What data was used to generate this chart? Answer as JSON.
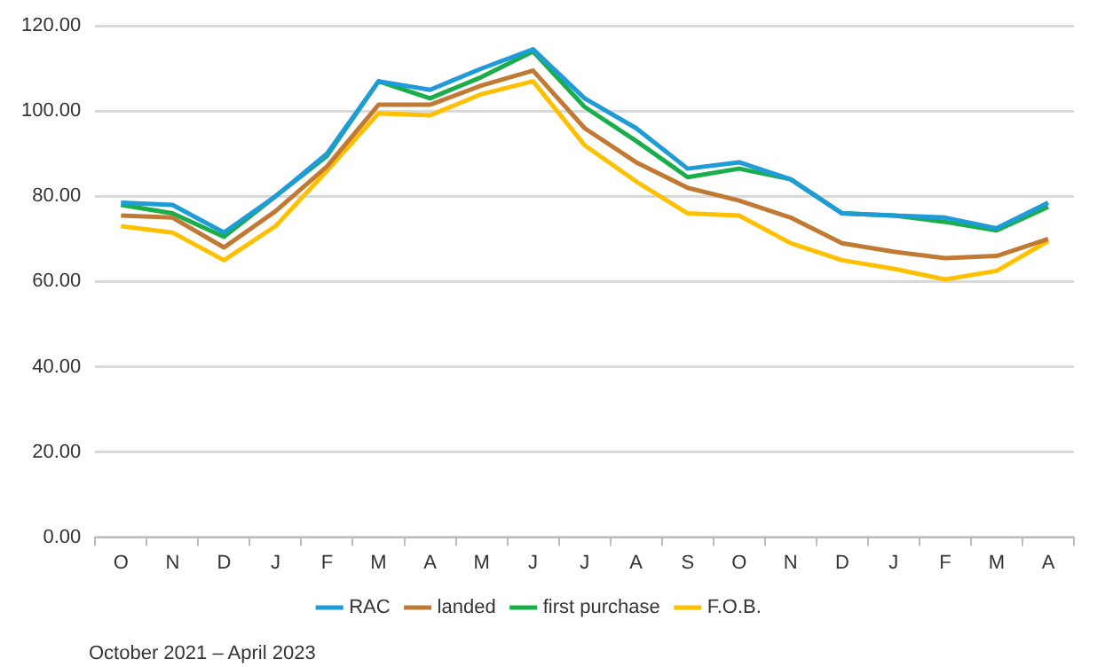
{
  "chart_data": {
    "type": "line",
    "categories": [
      "O",
      "N",
      "D",
      "J",
      "F",
      "M",
      "A",
      "M",
      "J",
      "J",
      "A",
      "S",
      "O",
      "N",
      "D",
      "J",
      "F",
      "M",
      "A"
    ],
    "series": [
      {
        "name": "RAC",
        "color": "#1f9bd7",
        "values": [
          78.5,
          78,
          71.5,
          80,
          90,
          107,
          105,
          110,
          114.5,
          103,
          96,
          86.5,
          88,
          84,
          76,
          75.5,
          75,
          72.5,
          78.5
        ]
      },
      {
        "name": "landed",
        "color": "#c07a34",
        "values": [
          75.5,
          75,
          68,
          76.5,
          87,
          101.5,
          101.5,
          106,
          109.5,
          96,
          88,
          82,
          79,
          75,
          69,
          67,
          65.5,
          66,
          70
        ]
      },
      {
        "name": "first purchase",
        "color": "#1aae4a",
        "values": [
          78,
          76,
          70.5,
          80,
          89.5,
          107,
          103,
          108,
          114,
          101,
          93,
          84.5,
          86.5,
          84,
          76,
          75.5,
          74,
          72,
          77.5
        ]
      },
      {
        "name": "F.O.B.",
        "color": "#ffc000",
        "values": [
          73,
          71.5,
          65,
          73,
          86,
          99.5,
          99,
          104,
          107,
          92,
          83.5,
          76,
          75.5,
          69,
          65,
          63,
          60.5,
          62.5,
          69.5
        ]
      }
    ],
    "ylim": [
      0,
      120
    ],
    "yticks": [
      {
        "value": 0,
        "label": "0.00"
      },
      {
        "value": 20,
        "label": "20.00"
      },
      {
        "value": 40,
        "label": "40.00"
      },
      {
        "value": 60,
        "label": "60.00"
      },
      {
        "value": 80,
        "label": "80.00"
      },
      {
        "value": 100,
        "label": "100.00"
      },
      {
        "value": 120,
        "label": "120.00"
      }
    ],
    "grid": "y",
    "legend": "bottom",
    "marker": "none",
    "line_style": "solid",
    "annotations": [
      "October 2021 – April 2023"
    ]
  }
}
